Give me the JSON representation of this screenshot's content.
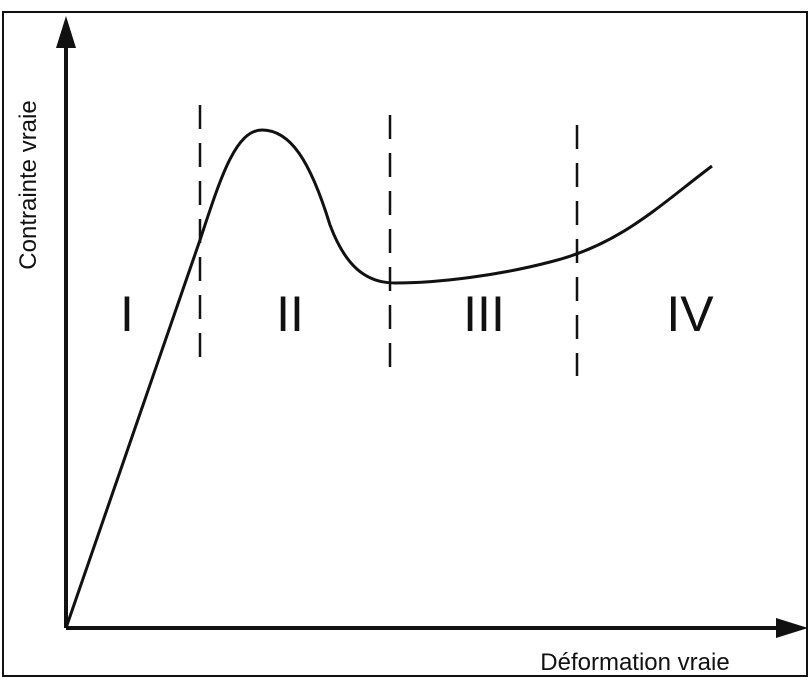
{
  "axes": {
    "x_label": "Déformation vraie",
    "y_label": "Contrainte vraie"
  },
  "regions": [
    "I",
    "II",
    "III",
    "IV"
  ]
}
